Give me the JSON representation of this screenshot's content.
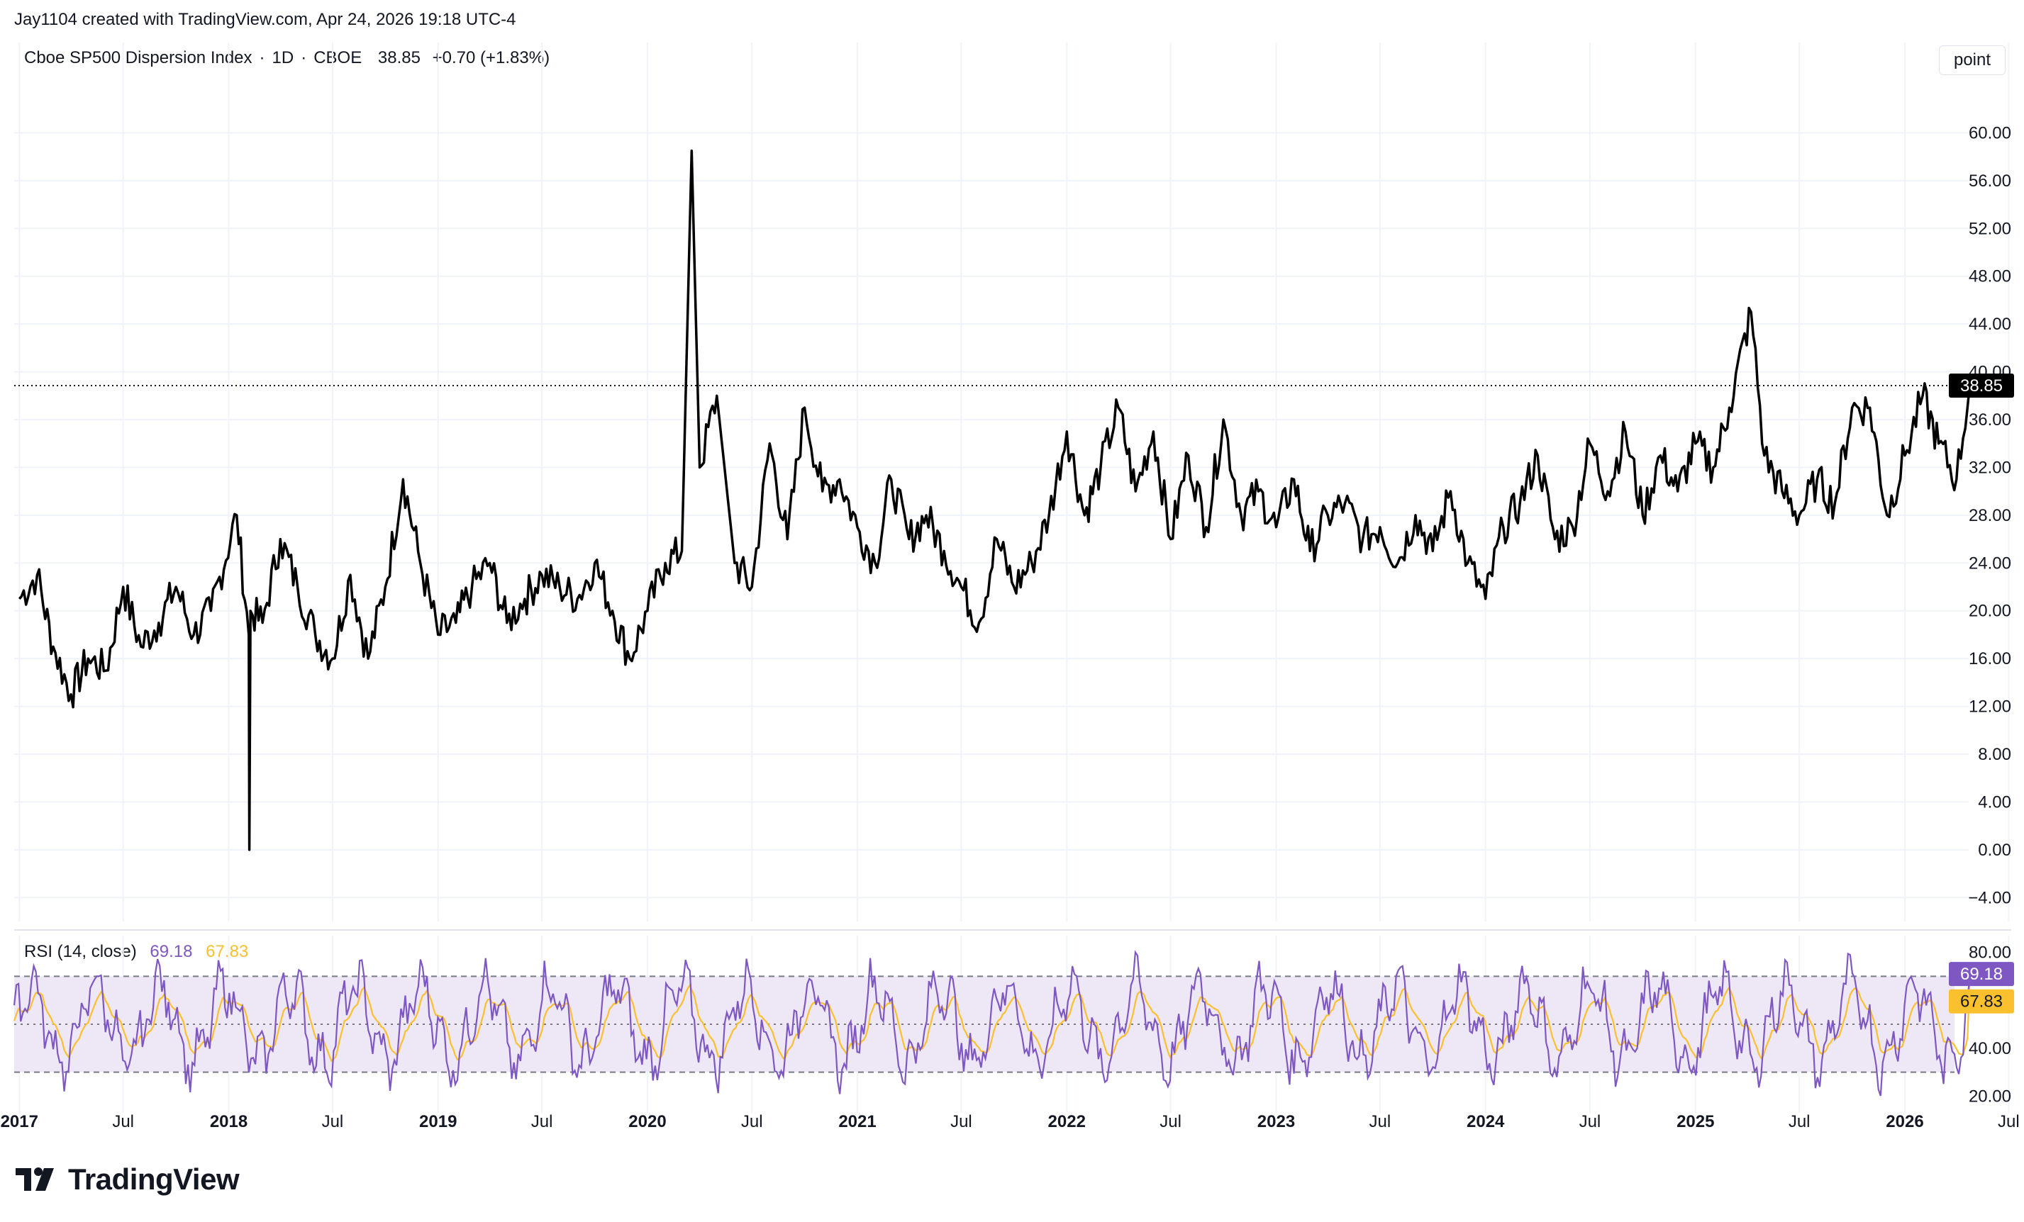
{
  "header": {
    "attribution": "Jay1104 created with TradingView.com, Apr 24, 2026 19:18 UTC-4"
  },
  "legend": {
    "name": "Cboe SP500 Dispersion Index",
    "interval": "1D",
    "exchange": "CBOE",
    "separator": "·",
    "last": "38.85",
    "change": "+0.70 (+1.83%)"
  },
  "unit_button": "point",
  "rsi_legend": {
    "label": "RSI (14, close)",
    "rsi_value": "69.18",
    "ma_value": "67.83"
  },
  "brand": {
    "name": "TradingView",
    "logo_icon": "tradingview-logo-icon"
  },
  "colors": {
    "price_line": "#000000",
    "rsi_line": "#7e57c2",
    "rsi_ma_line": "#fbc02d",
    "rsi_band_fill": "#ede7f6",
    "grid": "#f0f3fa",
    "last_price_tag_bg": "#000000",
    "rsi_tag_bg": "#7e57c2",
    "ma_tag_bg": "#fbc02d"
  },
  "chart_data": [
    {
      "type": "line",
      "title": "Cboe SP500 Dispersion Index · 1D · CBOE",
      "ylabel": "point",
      "ylim": [
        -6,
        64
      ],
      "y_ticks": [
        "60.00",
        "56.00",
        "52.00",
        "48.00",
        "44.00",
        "40.00",
        "36.00",
        "32.00",
        "28.00",
        "24.00",
        "20.00",
        "16.00",
        "12.00",
        "8.00",
        "4.00",
        "0.00",
        "−4.00"
      ],
      "last_value_label": "38.85",
      "last_value": 38.85,
      "grid": true,
      "series": [
        {
          "name": "Cboe SP500 Dispersion Index",
          "x": [
            "2017-01-01",
            "2017-02-01",
            "2017-03-01",
            "2017-04-01",
            "2017-05-01",
            "2017-06-01",
            "2017-07-01",
            "2017-08-01",
            "2017-09-01",
            "2017-10-01",
            "2017-11-01",
            "2017-12-01",
            "2018-01-15",
            "2018-02-05",
            "2018-02-06",
            "2018-02-08",
            "2018-03-01",
            "2018-04-01",
            "2018-05-01",
            "2018-06-01",
            "2018-07-01",
            "2018-08-01",
            "2018-09-01",
            "2018-10-01",
            "2018-11-01",
            "2018-12-01",
            "2019-01-01",
            "2019-02-01",
            "2019-03-01",
            "2019-04-01",
            "2019-05-01",
            "2019-06-01",
            "2019-07-01",
            "2019-08-01",
            "2019-09-01",
            "2019-10-01",
            "2019-11-01",
            "2019-12-01",
            "2020-01-01",
            "2020-02-01",
            "2020-03-01",
            "2020-03-18",
            "2020-04-01",
            "2020-05-01",
            "2020-06-01",
            "2020-07-01",
            "2020-08-01",
            "2020-09-01",
            "2020-10-01",
            "2020-11-01",
            "2020-12-01",
            "2021-01-01",
            "2021-02-01",
            "2021-03-01",
            "2021-04-01",
            "2021-05-01",
            "2021-06-01",
            "2021-07-01",
            "2021-08-01",
            "2021-09-01",
            "2021-10-01",
            "2021-11-01",
            "2021-12-01",
            "2022-01-01",
            "2022-02-01",
            "2022-03-01",
            "2022-04-01",
            "2022-05-01",
            "2022-06-01",
            "2022-07-01",
            "2022-08-01",
            "2022-09-01",
            "2022-10-01",
            "2022-11-01",
            "2022-12-01",
            "2023-01-01",
            "2023-02-01",
            "2023-03-01",
            "2023-04-01",
            "2023-05-01",
            "2023-06-01",
            "2023-07-01",
            "2023-08-01",
            "2023-09-01",
            "2023-10-01",
            "2023-11-01",
            "2023-12-01",
            "2024-01-01",
            "2024-02-01",
            "2024-03-01",
            "2024-04-01",
            "2024-05-01",
            "2024-06-01",
            "2024-07-01",
            "2024-08-01",
            "2024-09-01",
            "2024-10-01",
            "2024-11-01",
            "2024-12-01",
            "2025-01-01",
            "2025-02-01",
            "2025-03-01",
            "2025-04-08",
            "2025-05-01",
            "2025-06-01",
            "2025-07-01",
            "2025-08-01",
            "2025-09-01",
            "2025-10-01",
            "2025-11-01",
            "2025-12-01",
            "2026-01-01",
            "2026-02-01",
            "2026-03-01",
            "2026-04-01",
            "2026-04-24"
          ],
          "values": [
            21,
            23,
            17,
            13,
            16,
            15,
            22,
            17,
            19,
            22,
            18,
            20,
            28,
            18,
            0,
            20,
            19,
            26,
            22,
            18,
            16,
            23,
            16,
            22,
            31,
            24,
            18,
            19,
            22,
            24,
            19,
            21,
            23,
            22,
            21,
            24,
            20,
            16,
            20,
            24,
            25,
            58.5,
            32,
            38,
            24,
            22,
            34,
            26,
            37,
            30,
            31,
            27,
            24,
            31,
            26,
            28,
            25,
            22,
            19,
            26,
            22,
            24,
            28,
            35,
            28,
            32,
            37,
            30,
            35,
            26,
            33,
            27,
            36,
            28,
            30,
            27,
            31,
            25,
            28,
            29,
            26,
            27,
            24,
            28,
            25,
            30,
            24,
            21,
            27,
            29,
            33,
            26,
            27,
            34,
            30,
            35,
            28,
            33,
            30,
            34,
            32,
            37,
            45,
            33,
            30,
            28,
            31,
            29,
            37,
            37,
            28,
            33,
            38,
            34,
            31,
            38.85
          ]
        }
      ]
    },
    {
      "type": "line",
      "title": "RSI (14, close)",
      "ylim": [
        16,
        84
      ],
      "y_ticks": [
        "80.00",
        "40.00",
        "20.00"
      ],
      "bands": {
        "upper": 70,
        "middle": 50,
        "lower": 30
      },
      "series": [
        {
          "name": "RSI",
          "last": 69.18
        },
        {
          "name": "MA",
          "last": 67.83
        }
      ]
    }
  ],
  "x_axis": {
    "labels": [
      {
        "text": "2017",
        "date": "2017-01-01",
        "bold": true
      },
      {
        "text": "Jul",
        "date": "2017-07-01",
        "bold": false
      },
      {
        "text": "2018",
        "date": "2018-01-01",
        "bold": true
      },
      {
        "text": "Jul",
        "date": "2018-07-01",
        "bold": false
      },
      {
        "text": "2019",
        "date": "2019-01-01",
        "bold": true
      },
      {
        "text": "Jul",
        "date": "2019-07-01",
        "bold": false
      },
      {
        "text": "2020",
        "date": "2020-01-01",
        "bold": true
      },
      {
        "text": "Jul",
        "date": "2020-07-01",
        "bold": false
      },
      {
        "text": "2021",
        "date": "2021-01-01",
        "bold": true
      },
      {
        "text": "Jul",
        "date": "2021-07-01",
        "bold": false
      },
      {
        "text": "2022",
        "date": "2022-01-01",
        "bold": true
      },
      {
        "text": "Jul",
        "date": "2022-07-01",
        "bold": false
      },
      {
        "text": "2023",
        "date": "2023-01-01",
        "bold": true
      },
      {
        "text": "Jul",
        "date": "2023-07-01",
        "bold": false
      },
      {
        "text": "2024",
        "date": "2024-01-01",
        "bold": true
      },
      {
        "text": "Jul",
        "date": "2024-07-01",
        "bold": false
      },
      {
        "text": "2025",
        "date": "2025-01-01",
        "bold": true
      },
      {
        "text": "Jul",
        "date": "2025-07-01",
        "bold": false
      },
      {
        "text": "2026",
        "date": "2026-01-01",
        "bold": true
      },
      {
        "text": "Jul",
        "date": "2026-07-01",
        "bold": false
      }
    ]
  }
}
